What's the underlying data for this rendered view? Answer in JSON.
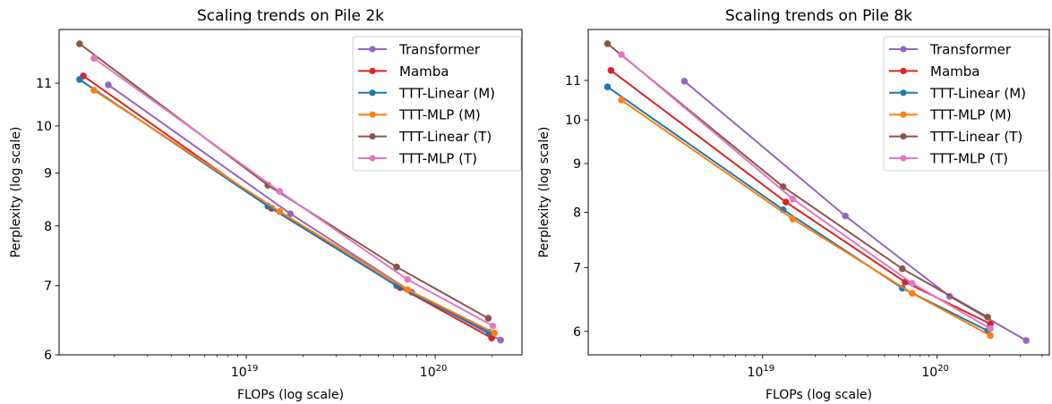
{
  "chart_data": [
    {
      "type": "line",
      "title": "Scaling trends on Pile 2k",
      "xlabel": "FLOPs (log scale)",
      "ylabel": "Perplexity (log scale)",
      "xscale": "log",
      "yscale": "log",
      "xlim": [
        1.02e+18,
        2.88e+20
      ],
      "ylim": [
        6.0,
        12.4
      ],
      "xticks": [
        {
          "value": 1e+19,
          "label": "10",
          "exp": "19"
        },
        {
          "value": 1e+20,
          "label": "10",
          "exp": "20"
        }
      ],
      "yticks": [
        6,
        7,
        8,
        9,
        10,
        11
      ],
      "grid": false,
      "legend_position": "top-right",
      "series": [
        {
          "name": "Transformer",
          "color": "#9467bd",
          "x": [
            1.86e+18,
            1.71e+19,
            7.52e+19,
            2.22e+20
          ],
          "y": [
            10.96,
            8.22,
            6.9,
            6.2
          ]
        },
        {
          "name": "Mamba",
          "color": "#d62728",
          "x": [
            1.37e+18,
            1.36e+19,
            6.53e+19,
            1.99e+20
          ],
          "y": [
            11.18,
            8.32,
            6.97,
            6.23
          ]
        },
        {
          "name": "TTT-Linear (M)",
          "color": "#1f77b4",
          "x": [
            1.31e+18,
            1.3e+19,
            6.25e+19,
            1.93e+20
          ],
          "y": [
            11.09,
            8.36,
            7.0,
            6.31
          ]
        },
        {
          "name": "TTT-MLP (M)",
          "color": "#ff7f0e",
          "x": [
            1.56e+18,
            1.5e+19,
            7.13e+19,
            2.06e+20
          ],
          "y": [
            10.83,
            8.26,
            6.94,
            6.3
          ]
        },
        {
          "name": "TTT-Linear (T)",
          "color": "#8c564b",
          "x": [
            1.31e+18,
            1.3e+19,
            6.25e+19,
            1.91e+20
          ],
          "y": [
            12.01,
            8.76,
            7.3,
            6.51
          ]
        },
        {
          "name": "TTT-MLP (T)",
          "color": "#e377c2",
          "x": [
            1.56e+18,
            1.5e+19,
            7.13e+19,
            2.02e+20
          ],
          "y": [
            11.63,
            8.64,
            7.1,
            6.4
          ]
        }
      ]
    },
    {
      "type": "line",
      "title": "Scaling trends on Pile 8k",
      "xlabel": "FLOPs (log scale)",
      "ylabel": "Perplexity (log scale)",
      "xscale": "log",
      "yscale": "log",
      "xlim": [
        1e+18,
        4.4e+20
      ],
      "ylim": [
        5.67,
        12.44
      ],
      "xticks": [
        {
          "value": 1e+19,
          "label": "10",
          "exp": "19"
        },
        {
          "value": 1e+20,
          "label": "10",
          "exp": "20"
        }
      ],
      "yticks": [
        6,
        7,
        8,
        9,
        10,
        11
      ],
      "grid": false,
      "legend_position": "top-right",
      "series": [
        {
          "name": "Transformer",
          "color": "#9467bd",
          "x": [
            3.56e+18,
            2.98e+19,
            1.18e+20,
            3.24e+20
          ],
          "y": [
            10.98,
            7.93,
            6.53,
            5.87
          ]
        },
        {
          "name": "Mamba",
          "color": "#d62728",
          "x": [
            1.35e+18,
            1.36e+19,
            6.56e+19,
            2.02e+20
          ],
          "y": [
            11.27,
            8.2,
            6.76,
            6.11
          ]
        },
        {
          "name": "TTT-Linear (M)",
          "color": "#1f77b4",
          "x": [
            1.29e+18,
            1.31e+19,
            6.32e+19,
            1.95e+20
          ],
          "y": [
            10.83,
            8.05,
            6.66,
            6.01
          ]
        },
        {
          "name": "TTT-MLP (M)",
          "color": "#ff7f0e",
          "x": [
            1.55e+18,
            1.49e+19,
            7.19e+19,
            2.02e+20
          ],
          "y": [
            10.49,
            7.87,
            6.58,
            5.94
          ]
        },
        {
          "name": "TTT-Linear (T)",
          "color": "#8c564b",
          "x": [
            1.29e+18,
            1.31e+19,
            6.32e+19,
            1.95e+20
          ],
          "y": [
            12.02,
            8.51,
            6.98,
            6.21
          ]
        },
        {
          "name": "TTT-MLP (T)",
          "color": "#e377c2",
          "x": [
            1.55e+18,
            1.49e+19,
            7.19e+19,
            2.02e+20
          ],
          "y": [
            11.71,
            8.26,
            6.74,
            6.04
          ]
        }
      ]
    }
  ]
}
